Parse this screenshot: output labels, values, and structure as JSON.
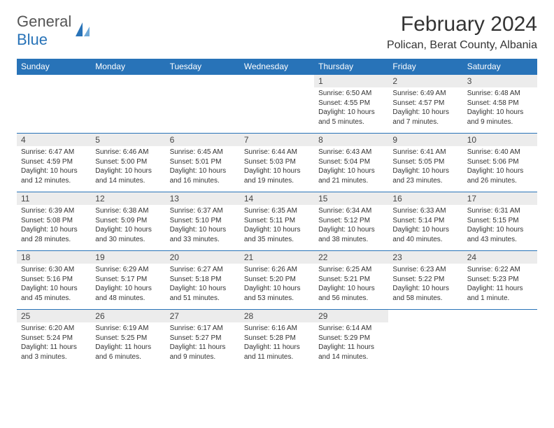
{
  "brand": {
    "part1": "General",
    "part2": "Blue"
  },
  "title": "February 2024",
  "location": "Polican, Berat County, Albania",
  "colors": {
    "header_bg": "#2873b8",
    "header_text": "#ffffff",
    "daynum_bg": "#ececec",
    "border": "#2873b8",
    "text": "#333333"
  },
  "weekdays": [
    "Sunday",
    "Monday",
    "Tuesday",
    "Wednesday",
    "Thursday",
    "Friday",
    "Saturday"
  ],
  "weeks": [
    [
      {
        "n": "",
        "sr": "",
        "ss": "",
        "dl": "",
        "empty": true
      },
      {
        "n": "",
        "sr": "",
        "ss": "",
        "dl": "",
        "empty": true
      },
      {
        "n": "",
        "sr": "",
        "ss": "",
        "dl": "",
        "empty": true
      },
      {
        "n": "",
        "sr": "",
        "ss": "",
        "dl": "",
        "empty": true
      },
      {
        "n": "1",
        "sr": "Sunrise: 6:50 AM",
        "ss": "Sunset: 4:55 PM",
        "dl": "Daylight: 10 hours and 5 minutes."
      },
      {
        "n": "2",
        "sr": "Sunrise: 6:49 AM",
        "ss": "Sunset: 4:57 PM",
        "dl": "Daylight: 10 hours and 7 minutes."
      },
      {
        "n": "3",
        "sr": "Sunrise: 6:48 AM",
        "ss": "Sunset: 4:58 PM",
        "dl": "Daylight: 10 hours and 9 minutes."
      }
    ],
    [
      {
        "n": "4",
        "sr": "Sunrise: 6:47 AM",
        "ss": "Sunset: 4:59 PM",
        "dl": "Daylight: 10 hours and 12 minutes."
      },
      {
        "n": "5",
        "sr": "Sunrise: 6:46 AM",
        "ss": "Sunset: 5:00 PM",
        "dl": "Daylight: 10 hours and 14 minutes."
      },
      {
        "n": "6",
        "sr": "Sunrise: 6:45 AM",
        "ss": "Sunset: 5:01 PM",
        "dl": "Daylight: 10 hours and 16 minutes."
      },
      {
        "n": "7",
        "sr": "Sunrise: 6:44 AM",
        "ss": "Sunset: 5:03 PM",
        "dl": "Daylight: 10 hours and 19 minutes."
      },
      {
        "n": "8",
        "sr": "Sunrise: 6:43 AM",
        "ss": "Sunset: 5:04 PM",
        "dl": "Daylight: 10 hours and 21 minutes."
      },
      {
        "n": "9",
        "sr": "Sunrise: 6:41 AM",
        "ss": "Sunset: 5:05 PM",
        "dl": "Daylight: 10 hours and 23 minutes."
      },
      {
        "n": "10",
        "sr": "Sunrise: 6:40 AM",
        "ss": "Sunset: 5:06 PM",
        "dl": "Daylight: 10 hours and 26 minutes."
      }
    ],
    [
      {
        "n": "11",
        "sr": "Sunrise: 6:39 AM",
        "ss": "Sunset: 5:08 PM",
        "dl": "Daylight: 10 hours and 28 minutes."
      },
      {
        "n": "12",
        "sr": "Sunrise: 6:38 AM",
        "ss": "Sunset: 5:09 PM",
        "dl": "Daylight: 10 hours and 30 minutes."
      },
      {
        "n": "13",
        "sr": "Sunrise: 6:37 AM",
        "ss": "Sunset: 5:10 PM",
        "dl": "Daylight: 10 hours and 33 minutes."
      },
      {
        "n": "14",
        "sr": "Sunrise: 6:35 AM",
        "ss": "Sunset: 5:11 PM",
        "dl": "Daylight: 10 hours and 35 minutes."
      },
      {
        "n": "15",
        "sr": "Sunrise: 6:34 AM",
        "ss": "Sunset: 5:12 PM",
        "dl": "Daylight: 10 hours and 38 minutes."
      },
      {
        "n": "16",
        "sr": "Sunrise: 6:33 AM",
        "ss": "Sunset: 5:14 PM",
        "dl": "Daylight: 10 hours and 40 minutes."
      },
      {
        "n": "17",
        "sr": "Sunrise: 6:31 AM",
        "ss": "Sunset: 5:15 PM",
        "dl": "Daylight: 10 hours and 43 minutes."
      }
    ],
    [
      {
        "n": "18",
        "sr": "Sunrise: 6:30 AM",
        "ss": "Sunset: 5:16 PM",
        "dl": "Daylight: 10 hours and 45 minutes."
      },
      {
        "n": "19",
        "sr": "Sunrise: 6:29 AM",
        "ss": "Sunset: 5:17 PM",
        "dl": "Daylight: 10 hours and 48 minutes."
      },
      {
        "n": "20",
        "sr": "Sunrise: 6:27 AM",
        "ss": "Sunset: 5:18 PM",
        "dl": "Daylight: 10 hours and 51 minutes."
      },
      {
        "n": "21",
        "sr": "Sunrise: 6:26 AM",
        "ss": "Sunset: 5:20 PM",
        "dl": "Daylight: 10 hours and 53 minutes."
      },
      {
        "n": "22",
        "sr": "Sunrise: 6:25 AM",
        "ss": "Sunset: 5:21 PM",
        "dl": "Daylight: 10 hours and 56 minutes."
      },
      {
        "n": "23",
        "sr": "Sunrise: 6:23 AM",
        "ss": "Sunset: 5:22 PM",
        "dl": "Daylight: 10 hours and 58 minutes."
      },
      {
        "n": "24",
        "sr": "Sunrise: 6:22 AM",
        "ss": "Sunset: 5:23 PM",
        "dl": "Daylight: 11 hours and 1 minute."
      }
    ],
    [
      {
        "n": "25",
        "sr": "Sunrise: 6:20 AM",
        "ss": "Sunset: 5:24 PM",
        "dl": "Daylight: 11 hours and 3 minutes."
      },
      {
        "n": "26",
        "sr": "Sunrise: 6:19 AM",
        "ss": "Sunset: 5:25 PM",
        "dl": "Daylight: 11 hours and 6 minutes."
      },
      {
        "n": "27",
        "sr": "Sunrise: 6:17 AM",
        "ss": "Sunset: 5:27 PM",
        "dl": "Daylight: 11 hours and 9 minutes."
      },
      {
        "n": "28",
        "sr": "Sunrise: 6:16 AM",
        "ss": "Sunset: 5:28 PM",
        "dl": "Daylight: 11 hours and 11 minutes."
      },
      {
        "n": "29",
        "sr": "Sunrise: 6:14 AM",
        "ss": "Sunset: 5:29 PM",
        "dl": "Daylight: 11 hours and 14 minutes."
      },
      {
        "n": "",
        "sr": "",
        "ss": "",
        "dl": "",
        "empty": true
      },
      {
        "n": "",
        "sr": "",
        "ss": "",
        "dl": "",
        "empty": true
      }
    ]
  ]
}
